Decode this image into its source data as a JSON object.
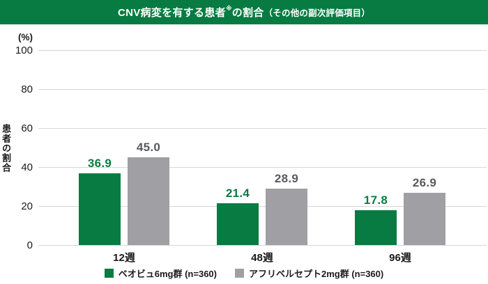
{
  "header": {
    "title_pre": "CNV病変を有する患者",
    "title_ref_mark": "※",
    "title_post": "の割合",
    "title_paren": "（その他の副次評価項目）"
  },
  "chart_data": {
    "type": "bar",
    "categories": [
      "12週",
      "48週",
      "96週"
    ],
    "series": [
      {
        "name": "ベオビュ6mg群 (n=360)",
        "color": "#077B41",
        "label_color": "#077B41",
        "values": [
          36.9,
          21.4,
          17.8
        ]
      },
      {
        "name": "アフリベルセプト2mg群 (n=360)",
        "color": "#A09FA4",
        "label_color": "#595A5E",
        "values": [
          45.0,
          28.9,
          26.9
        ]
      }
    ],
    "title": "CNV病変を有する患者※の割合（その他の副次評価項目）",
    "xlabel": "",
    "ylabel": "患者の割合",
    "y_unit": "(%)",
    "ylim": [
      0,
      100
    ],
    "yticks": [
      0,
      20,
      40,
      60,
      80,
      100
    ],
    "grid": true,
    "legend_position": "bottom"
  },
  "colors": {
    "banner_bg": "#077B41",
    "grid_line": "#D7D6DA",
    "tick_text": "#1A1A1A"
  }
}
